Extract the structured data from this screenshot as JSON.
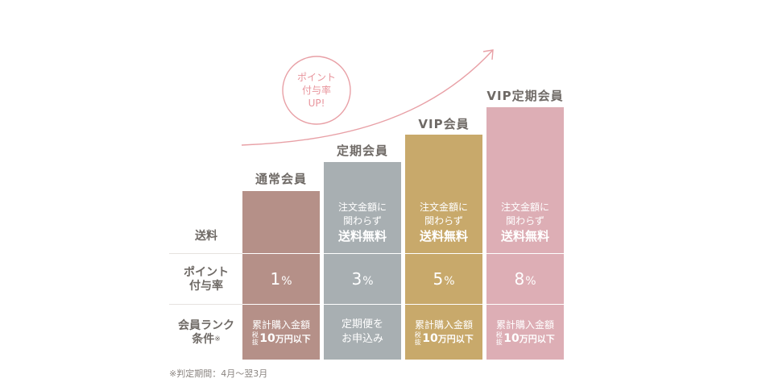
{
  "badge": {
    "line1": "ポイント",
    "line2": "付与率",
    "line3": "UP!"
  },
  "row_labels": {
    "shipping": "送料",
    "points_line1": "ポイント",
    "points_line2": "付与率",
    "rank_line1": "会員ランク",
    "rank_line2": "条件",
    "rank_mark": "※"
  },
  "tiers": [
    {
      "name": "通常会員",
      "color": "#b59088",
      "shipping_line1": "",
      "shipping_line2": "",
      "shipping_line3": "",
      "point_rate": "1",
      "rank_line1": "累計購入金額",
      "rank_tax": "税抜",
      "rank_amount": "10",
      "rank_unit": "万円以下"
    },
    {
      "name": "定期会員",
      "color": "#a8afb2",
      "shipping_line1": "注文金額に",
      "shipping_line2": "関わらず",
      "shipping_line3": "送料無料",
      "point_rate": "3",
      "rank_line1": "定期便を",
      "rank_line2": "お申込み"
    },
    {
      "name": "VIP会員",
      "color": "#c8a96b",
      "shipping_line1": "注文金額に",
      "shipping_line2": "関わらず",
      "shipping_line3": "送料無料",
      "point_rate": "5",
      "rank_line1": "累計購入金額",
      "rank_tax": "税抜",
      "rank_amount": "10",
      "rank_unit": "万円以下"
    },
    {
      "name": "VIP定期会員",
      "color": "#ddaeb5",
      "shipping_line1": "注文金額に",
      "shipping_line2": "関わらず",
      "shipping_line3": "送料無料",
      "point_rate": "8",
      "rank_line1": "累計購入金額",
      "rank_tax": "税抜",
      "rank_amount": "10",
      "rank_unit": "万円以下"
    }
  ],
  "percent_sign": "%",
  "footnote": "※判定期間：4月〜翌3月",
  "colors": {
    "arrow": "#e8a0a6",
    "text": "#6f6a66"
  }
}
